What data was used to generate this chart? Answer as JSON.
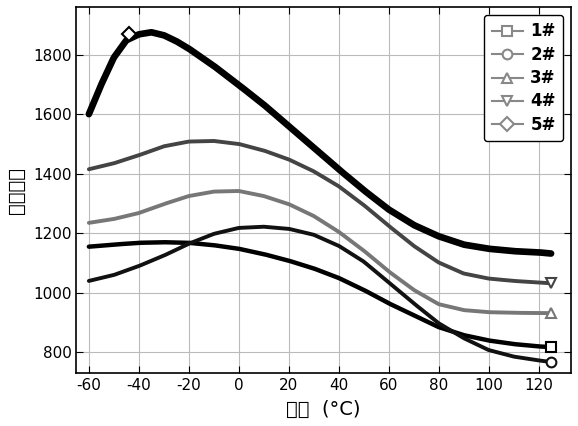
{
  "title": "",
  "xlabel": "温度  (°C)",
  "ylabel": "介电常数",
  "xlim": [
    -65,
    133
  ],
  "ylim": [
    730,
    1960
  ],
  "xticks": [
    -60,
    -40,
    -20,
    0,
    20,
    40,
    60,
    80,
    100,
    120
  ],
  "yticks": [
    800,
    1000,
    1200,
    1400,
    1600,
    1800
  ],
  "background_color": "#ffffff",
  "grid_color": "#bbbbbb",
  "series": [
    {
      "label": "1#",
      "marker": "s",
      "color": "#000000",
      "linewidth": 3.2,
      "x": [
        -60,
        -50,
        -40,
        -30,
        -20,
        -10,
        0,
        10,
        20,
        30,
        40,
        50,
        60,
        70,
        80,
        90,
        100,
        110,
        120,
        125
      ],
      "y": [
        1155,
        1162,
        1168,
        1170,
        1168,
        1160,
        1148,
        1130,
        1108,
        1082,
        1050,
        1010,
        965,
        925,
        885,
        858,
        840,
        828,
        820,
        818
      ],
      "marker_x": 125,
      "marker_y": 818
    },
    {
      "label": "2#",
      "marker": "o",
      "color": "#111111",
      "linewidth": 2.8,
      "x": [
        -60,
        -50,
        -40,
        -30,
        -20,
        -10,
        0,
        10,
        20,
        30,
        40,
        50,
        60,
        70,
        80,
        90,
        100,
        110,
        120,
        125
      ],
      "y": [
        1040,
        1060,
        1090,
        1125,
        1165,
        1198,
        1218,
        1222,
        1215,
        1195,
        1158,
        1105,
        1035,
        965,
        898,
        848,
        808,
        786,
        773,
        768
      ],
      "marker_x": 125,
      "marker_y": 768
    },
    {
      "label": "3#",
      "marker": "^",
      "color": "#777777",
      "linewidth": 2.8,
      "x": [
        -60,
        -50,
        -40,
        -30,
        -20,
        -10,
        0,
        10,
        20,
        30,
        40,
        50,
        60,
        70,
        80,
        90,
        100,
        110,
        120,
        125
      ],
      "y": [
        1235,
        1248,
        1268,
        1298,
        1325,
        1340,
        1342,
        1325,
        1298,
        1258,
        1205,
        1142,
        1072,
        1010,
        962,
        942,
        935,
        933,
        932,
        932
      ],
      "marker_x": 125,
      "marker_y": 932
    },
    {
      "label": "4#",
      "marker": "v",
      "color": "#444444",
      "linewidth": 2.8,
      "x": [
        -60,
        -50,
        -40,
        -30,
        -20,
        -10,
        0,
        10,
        20,
        30,
        40,
        50,
        60,
        70,
        80,
        90,
        100,
        110,
        120,
        125
      ],
      "y": [
        1415,
        1435,
        1462,
        1492,
        1508,
        1510,
        1500,
        1478,
        1448,
        1408,
        1358,
        1295,
        1225,
        1158,
        1102,
        1065,
        1048,
        1040,
        1035,
        1032
      ],
      "marker_x": 125,
      "marker_y": 1032
    },
    {
      "label": "5#",
      "marker": "D",
      "color": "#000000",
      "linewidth": 4.8,
      "x": [
        -60,
        -55,
        -50,
        -45,
        -40,
        -35,
        -30,
        -25,
        -20,
        -10,
        0,
        10,
        20,
        30,
        40,
        50,
        60,
        70,
        80,
        90,
        100,
        110,
        120,
        125
      ],
      "y": [
        1600,
        1700,
        1790,
        1848,
        1868,
        1875,
        1865,
        1845,
        1820,
        1762,
        1698,
        1632,
        1560,
        1488,
        1415,
        1345,
        1280,
        1228,
        1190,
        1162,
        1148,
        1140,
        1136,
        1132
      ],
      "marker_x": -44,
      "marker_y": 1870
    }
  ]
}
